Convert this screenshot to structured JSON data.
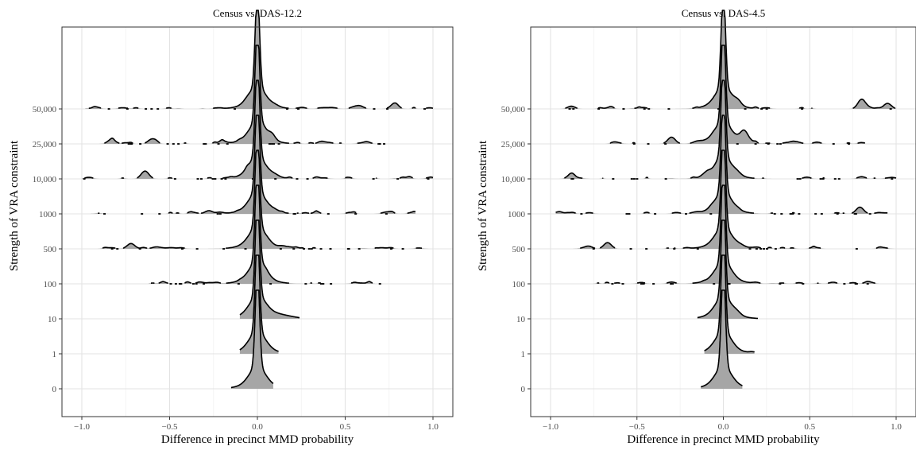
{
  "chart_data": [
    {
      "type": "ridgeline",
      "title": "Census vs. DAS-12.2",
      "xlabel": "Difference in precinct MMD probability",
      "ylabel": "Strength of VRA constraint",
      "xlim": [
        -1.0,
        1.0
      ],
      "x_ticks": [
        "−1.0",
        "−0.5",
        "0.0",
        "0.5",
        "1.0"
      ],
      "categories": [
        "0",
        "1",
        "10",
        "100",
        "500",
        "1000",
        "10,000",
        "25,000",
        "50,000"
      ],
      "grid": true,
      "fill_color": "#a6a6a6",
      "line_color": "#000000",
      "series": [
        {
          "category": "0",
          "range": [
            -0.15,
            0.09
          ],
          "blobs": []
        },
        {
          "category": "1",
          "range": [
            -0.1,
            0.12
          ],
          "blobs": []
        },
        {
          "category": "10",
          "range": [
            -0.1,
            0.24
          ],
          "blobs": []
        },
        {
          "category": "100",
          "range": [
            -0.62,
            0.73
          ],
          "blobs": [
            [
              -0.32,
              0.07
            ],
            [
              0.05,
              0.05
            ],
            [
              0.55,
              0.03
            ]
          ]
        },
        {
          "category": "500",
          "range": [
            -0.95,
            1.0
          ],
          "blobs": [
            [
              -0.72,
              0.24
            ],
            [
              -0.55,
              0.05
            ],
            [
              -0.83,
              0.05
            ],
            [
              0.15,
              0.05
            ]
          ]
        },
        {
          "category": "1000",
          "range": [
            -0.95,
            0.9
          ],
          "blobs": [
            [
              -0.28,
              0.1
            ],
            [
              0.1,
              0.06
            ],
            [
              0.75,
              0.07
            ],
            [
              0.88,
              0.06
            ]
          ]
        },
        {
          "category": "10,000",
          "range": [
            -1.0,
            1.0
          ],
          "blobs": [
            [
              -0.64,
              0.35
            ],
            [
              -0.96,
              0.07
            ],
            [
              0.1,
              0.07
            ],
            [
              0.85,
              0.05
            ],
            [
              0.98,
              0.05
            ]
          ]
        },
        {
          "category": "25,000",
          "range": [
            -0.94,
            0.77
          ],
          "blobs": [
            [
              -0.83,
              0.2
            ],
            [
              -0.6,
              0.22
            ],
            [
              -0.2,
              0.12
            ],
            [
              0.08,
              0.12
            ],
            [
              0.37,
              0.1
            ],
            [
              0.62,
              0.08
            ]
          ]
        },
        {
          "category": "50,000",
          "range": [
            -0.98,
            1.0
          ],
          "blobs": [
            [
              -0.92,
              0.09
            ],
            [
              0.1,
              0.06
            ],
            [
              0.58,
              0.08
            ],
            [
              0.78,
              0.22
            ],
            [
              0.98,
              0.05
            ]
          ]
        }
      ]
    },
    {
      "type": "ridgeline",
      "title": "Census vs. DAS-4.5",
      "xlabel": "Difference in precinct MMD probability",
      "ylabel": "Strength of VRA constraint",
      "xlim": [
        -1.0,
        1.0
      ],
      "x_ticks": [
        "−1.0",
        "−0.5",
        "0.0",
        "0.5",
        "1.0"
      ],
      "categories": [
        "0",
        "1",
        "10",
        "100",
        "500",
        "1000",
        "10,000",
        "25,000",
        "50,000"
      ],
      "grid": true,
      "fill_color": "#a6a6a6",
      "line_color": "#000000",
      "series": [
        {
          "category": "0",
          "range": [
            -0.13,
            0.11
          ],
          "blobs": []
        },
        {
          "category": "1",
          "range": [
            -0.11,
            0.18
          ],
          "blobs": [
            [
              0.17,
              0.06
            ]
          ]
        },
        {
          "category": "10",
          "range": [
            -0.15,
            0.2
          ],
          "blobs": [
            [
              0.08,
              0.1
            ]
          ]
        },
        {
          "category": "100",
          "range": [
            -0.76,
            0.9
          ],
          "blobs": [
            [
              -0.3,
              0.08
            ],
            [
              0.85,
              0.07
            ],
            [
              0.75,
              0.05
            ]
          ]
        },
        {
          "category": "500",
          "range": [
            -0.92,
            1.0
          ],
          "blobs": [
            [
              -0.67,
              0.28
            ],
            [
              -0.78,
              0.12
            ],
            [
              0.1,
              0.06
            ],
            [
              0.93,
              0.05
            ]
          ]
        },
        {
          "category": "1000",
          "range": [
            -0.97,
            0.95
          ],
          "blobs": [
            [
              -0.95,
              0.1
            ],
            [
              0.79,
              0.3
            ],
            [
              0.9,
              0.06
            ]
          ]
        },
        {
          "category": "10,000",
          "range": [
            -1.0,
            1.0
          ],
          "blobs": [
            [
              -0.88,
              0.2
            ],
            [
              -0.1,
              0.15
            ],
            [
              0.08,
              0.1
            ],
            [
              0.8,
              0.1
            ],
            [
              0.98,
              0.06
            ]
          ]
        },
        {
          "category": "25,000",
          "range": [
            -0.75,
            0.82
          ],
          "blobs": [
            [
              -0.3,
              0.3
            ],
            [
              0.12,
              0.5
            ],
            [
              -0.15,
              0.08
            ],
            [
              0.4,
              0.1
            ],
            [
              0.8,
              0.06
            ]
          ]
        },
        {
          "category": "50,000",
          "range": [
            -1.0,
            1.0
          ],
          "blobs": [
            [
              -0.88,
              0.12
            ],
            [
              0.08,
              0.1
            ],
            [
              0.8,
              0.4
            ],
            [
              0.95,
              0.25
            ],
            [
              0.25,
              0.05
            ]
          ]
        }
      ]
    }
  ]
}
